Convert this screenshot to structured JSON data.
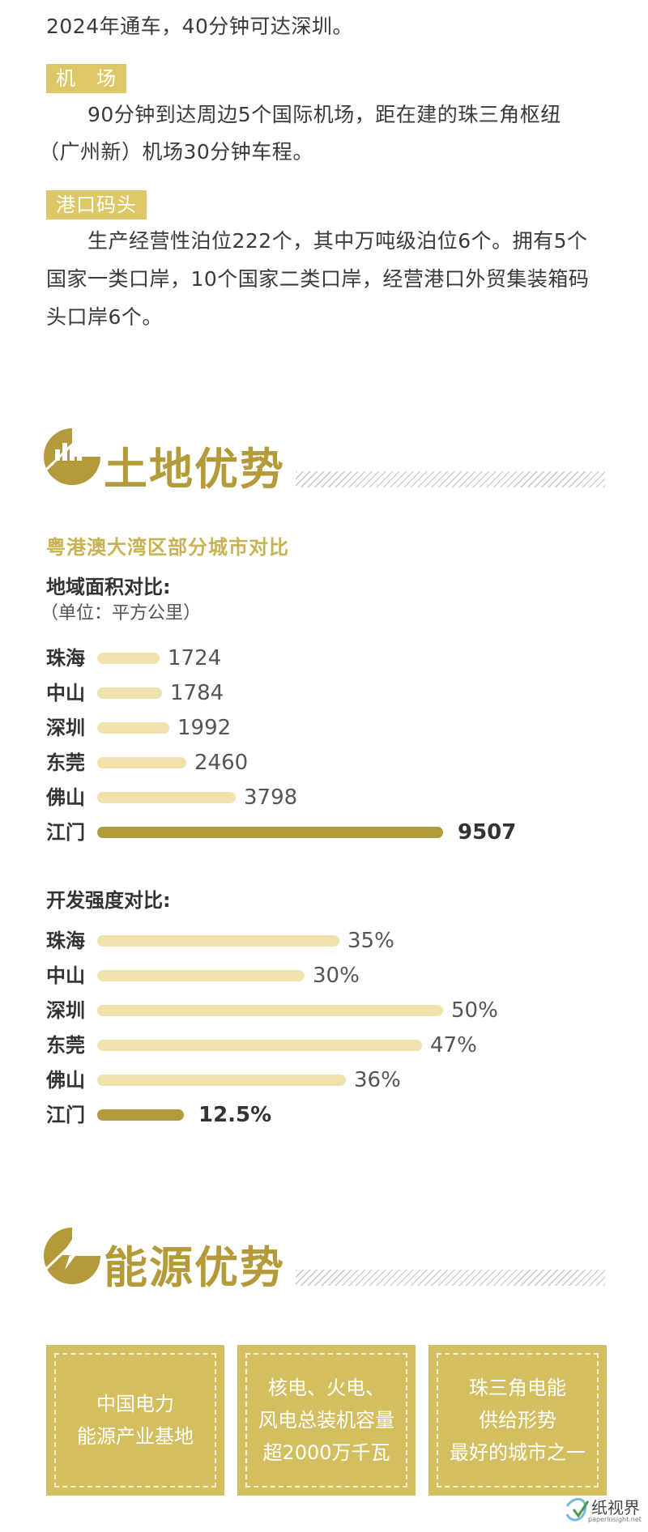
{
  "intro": {
    "line": "2024年通车，40分钟可达深圳。"
  },
  "airport": {
    "tag": "机　场",
    "lines": [
      "90分钟到达周边5个国际机场，距在建的珠三角枢纽",
      "（广州新）机场30分钟车程。"
    ]
  },
  "port": {
    "tag": "港口码头",
    "lines": [
      "生产经营性泊位222个，其中万吨级泊位6个。拥有5个",
      "国家一类口岸，10个国家二类口岸，经营港口外贸集装箱码",
      "头口岸6个。"
    ]
  },
  "land": {
    "title": "土地优势",
    "icon": "bar-chart-icon",
    "subtitle": "粤港澳大湾区部分城市对比",
    "area_title": "地域面积对比:",
    "area_unit": "（单位：平方公里）",
    "intensity_title": "开发强度对比:"
  },
  "energy": {
    "title": "能源优势",
    "icon": "lightning-icon",
    "boxes": [
      "中国电力\n能源产业基地",
      "核电、火电、\n风电总装机容量\n超2000万千瓦",
      "珠三角电能\n供给形势\n最好的城市之一"
    ]
  },
  "watermark": {
    "text": "纸视界",
    "sub": "paperinsight.net"
  },
  "colors": {
    "gold": "#b59a3a",
    "bar_light": "#efe2ad",
    "bar_dark": "#b39a3b",
    "tag_bg": "#ddc768",
    "box_bg": "#d4bf60"
  },
  "chart_data": [
    {
      "type": "bar",
      "orientation": "horizontal",
      "title": "地域面积对比:",
      "subtitle": "（单位：平方公里）",
      "categories": [
        "珠海",
        "中山",
        "深圳",
        "东莞",
        "佛山",
        "江门"
      ],
      "values": [
        1724,
        1784,
        1992,
        2460,
        3798,
        9507
      ],
      "value_labels": [
        "1724",
        "1784",
        "1992",
        "2460",
        "3798",
        "9507"
      ],
      "highlight": "江门",
      "xlim": [
        0,
        9507
      ]
    },
    {
      "type": "bar",
      "orientation": "horizontal",
      "title": "开发强度对比:",
      "categories": [
        "珠海",
        "中山",
        "深圳",
        "东莞",
        "佛山",
        "江门"
      ],
      "values": [
        35,
        30,
        50,
        47,
        36,
        12.5
      ],
      "value_labels": [
        "35%",
        "30%",
        "50%",
        "47%",
        "36%",
        "12.5%"
      ],
      "highlight": "江门",
      "xlim": [
        0,
        50
      ]
    }
  ]
}
